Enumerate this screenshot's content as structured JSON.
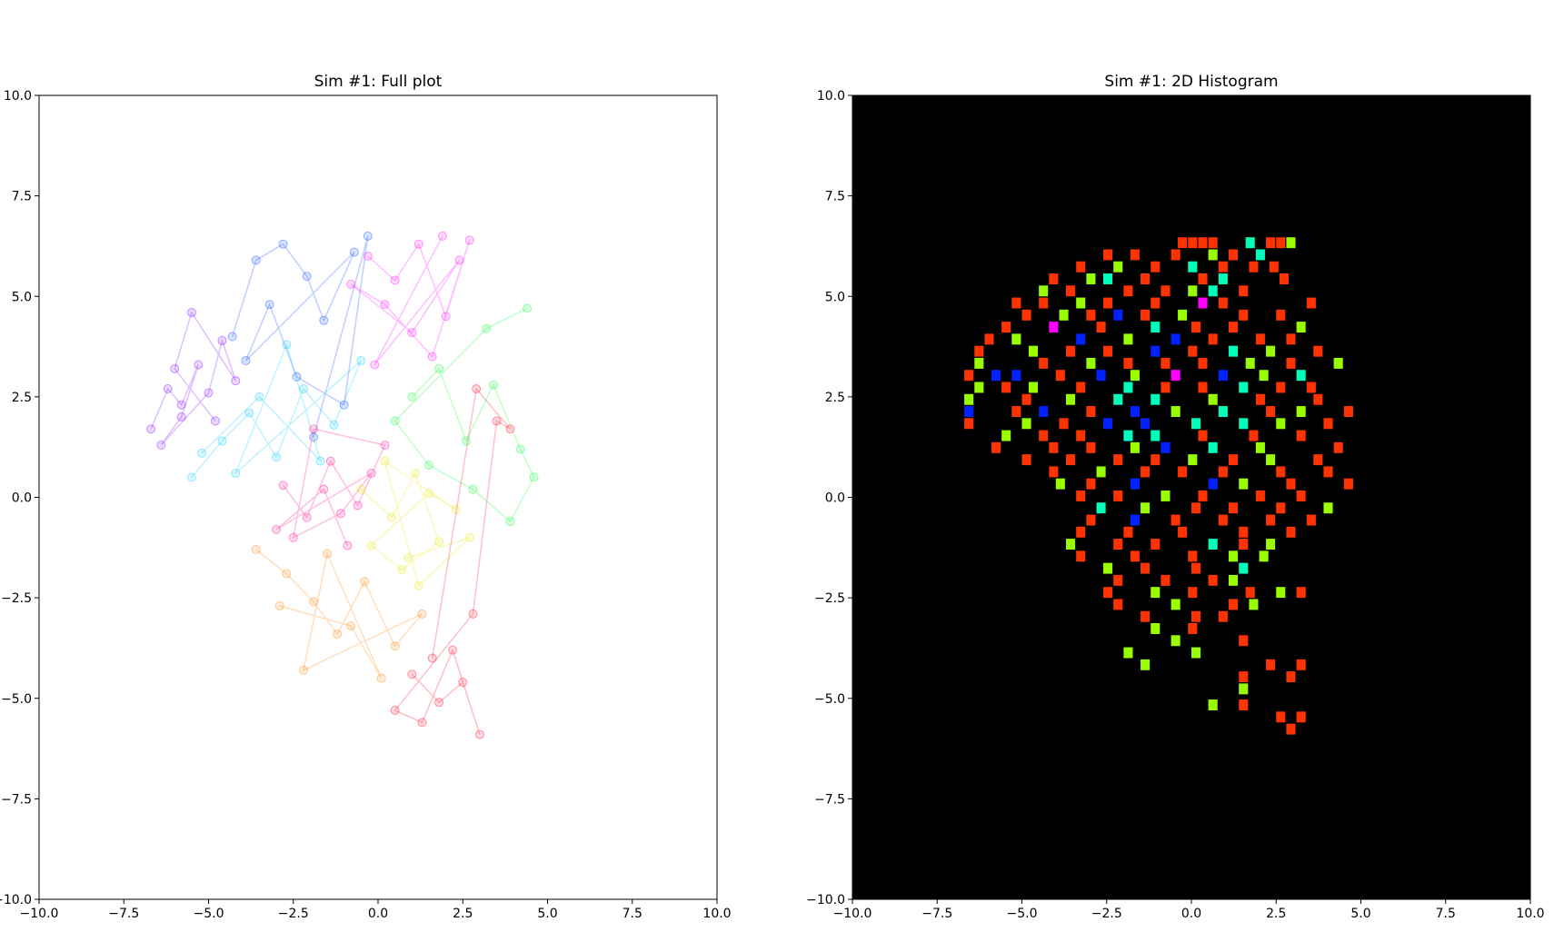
{
  "chart_data": [
    {
      "type": "trajectory",
      "title": "Sim #1: Full plot",
      "xlim": [
        -10,
        10
      ],
      "ylim": [
        -10,
        10
      ],
      "xticks": [
        {
          "value": -10,
          "label": "−10.0"
        },
        {
          "value": -7.5,
          "label": "−7.5"
        },
        {
          "value": -5,
          "label": "−5.0"
        },
        {
          "value": -2.5,
          "label": "−2.5"
        },
        {
          "value": 0,
          "label": "0.0"
        },
        2.5,
        {
          "value": 5,
          "label": "5.0"
        },
        7.5,
        {
          "value": 10,
          "label": "10.0"
        }
      ],
      "yticks": [
        {
          "value": -10,
          "label": "−10.0"
        },
        {
          "value": -7.5,
          "label": "−7.5"
        },
        {
          "value": -5,
          "label": "−5.0"
        },
        {
          "value": -2.5,
          "label": "−2.5"
        },
        {
          "value": 0,
          "label": "0.0"
        },
        2.5,
        {
          "value": 5,
          "label": "5.0"
        },
        7.5,
        {
          "value": 10,
          "label": "10.0"
        }
      ],
      "series": [
        {
          "color": "#8000ff",
          "x": [
            -6.7,
            -6.2,
            -5.8,
            -5.3,
            -5.8,
            -6.4,
            -5.0,
            -4.6,
            -4.2,
            -5.5,
            -6.0,
            -4.8
          ],
          "y": [
            1.7,
            2.7,
            2.3,
            3.3,
            2.0,
            1.3,
            2.6,
            3.9,
            2.9,
            4.6,
            3.2,
            1.9
          ]
        },
        {
          "color": "#0040ff",
          "x": [
            -4.3,
            -3.6,
            -2.8,
            -2.1,
            -1.6,
            -0.7,
            -3.9,
            -3.2,
            -2.4,
            -1.0,
            -0.3,
            -1.9
          ],
          "y": [
            4.0,
            5.9,
            6.3,
            5.5,
            4.4,
            6.1,
            3.4,
            4.8,
            3.0,
            2.3,
            6.5,
            1.5
          ]
        },
        {
          "color": "#00ccff",
          "x": [
            -5.5,
            -4.6,
            -3.8,
            -3.0,
            -2.2,
            -1.3,
            -0.5,
            -4.2,
            -2.7,
            -1.7,
            -3.5,
            -5.2
          ],
          "y": [
            0.5,
            1.4,
            2.1,
            1.0,
            2.7,
            1.8,
            3.4,
            0.6,
            3.8,
            0.9,
            2.5,
            1.1
          ]
        },
        {
          "color": "#ff00ff",
          "x": [
            -0.3,
            0.5,
            1.2,
            2.0,
            2.7,
            1.6,
            0.2,
            -0.8,
            1.0,
            2.4,
            -0.1,
            1.9
          ],
          "y": [
            6.0,
            5.4,
            6.3,
            4.5,
            6.4,
            3.5,
            4.8,
            5.3,
            4.1,
            5.9,
            3.3,
            6.5
          ]
        },
        {
          "color": "#00ff30",
          "x": [
            1.0,
            1.8,
            2.6,
            3.4,
            4.2,
            4.6,
            3.9,
            2.8,
            1.5,
            0.5,
            3.2,
            4.4
          ],
          "y": [
            2.5,
            3.2,
            1.4,
            2.8,
            1.2,
            0.5,
            -0.6,
            0.2,
            0.8,
            1.9,
            4.2,
            4.7
          ]
        },
        {
          "color": "#ff0090",
          "x": [
            -2.8,
            -2.1,
            -1.4,
            -0.6,
            0.2,
            -1.9,
            -2.5,
            -1.1,
            -0.2,
            -3.0,
            -1.6,
            -0.9
          ],
          "y": [
            0.3,
            -0.5,
            0.9,
            -0.2,
            1.3,
            1.7,
            -1.0,
            -0.4,
            0.6,
            -0.8,
            0.2,
            -1.2
          ]
        },
        {
          "color": "#e6e600",
          "x": [
            -0.5,
            0.4,
            1.1,
            1.8,
            0.7,
            -0.2,
            1.5,
            2.3,
            0.2,
            1.2,
            2.7,
            0.9
          ],
          "y": [
            0.2,
            -0.5,
            0.6,
            -1.1,
            -1.8,
            -1.2,
            0.1,
            -0.3,
            0.9,
            -2.2,
            -1.0,
            -1.5
          ]
        },
        {
          "color": "#ff8000",
          "x": [
            -3.6,
            -2.7,
            -1.9,
            -1.2,
            -0.4,
            0.5,
            1.3,
            -2.2,
            -1.5,
            0.1,
            -0.8,
            -2.9
          ],
          "y": [
            -1.3,
            -1.9,
            -2.6,
            -3.4,
            -2.1,
            -3.7,
            -2.9,
            -4.3,
            -1.4,
            -4.5,
            -3.2,
            -2.7
          ]
        },
        {
          "color": "#ff0020",
          "x": [
            1.0,
            1.8,
            2.5,
            3.0,
            2.2,
            1.3,
            0.5,
            2.8,
            3.5,
            3.9,
            2.9,
            1.6
          ],
          "y": [
            -4.4,
            -5.1,
            -4.6,
            -5.9,
            -3.8,
            -5.6,
            -5.3,
            -2.9,
            1.9,
            1.7,
            2.7,
            -4.0
          ]
        }
      ]
    },
    {
      "type": "hist2d",
      "title": "Sim #1: 2D Histogram",
      "xlim": [
        -10,
        10
      ],
      "ylim": [
        -10,
        10
      ],
      "bin_width": 0.27,
      "background": "#000000",
      "count_colors": [
        "#000000",
        "#ff3300",
        "#99ff00",
        "#00ffbb",
        "#0022ff",
        "#ff00ff"
      ],
      "xticks": [
        {
          "value": -10,
          "label": "−10.0"
        },
        {
          "value": -7.5,
          "label": "−7.5"
        },
        {
          "value": -5,
          "label": "−5.0"
        },
        {
          "value": -2.5,
          "label": "−2.5"
        },
        {
          "value": 0,
          "label": "0.0"
        },
        2.5,
        {
          "value": 5,
          "label": "5.0"
        },
        7.5,
        {
          "value": 10,
          "label": "10.0"
        }
      ],
      "yticks": [
        {
          "value": -10,
          "label": "−10.0"
        },
        {
          "value": -7.5,
          "label": "−7.5"
        },
        {
          "value": -5,
          "label": "−5.0"
        },
        {
          "value": -2.5,
          "label": "−2.5"
        },
        {
          "value": 0,
          "label": "0.0"
        },
        2.5,
        {
          "value": 5,
          "label": "5.0"
        },
        7.5,
        {
          "value": 10,
          "label": "10.0"
        }
      ],
      "rows": [
        {
          "y": 6.2,
          "x": [
            -0.4,
            -0.1,
            0.2,
            0.5,
            1.6,
            2.2,
            2.5,
            2.8
          ],
          "values": [
            1,
            1,
            1,
            1,
            3,
            1,
            1,
            2
          ]
        },
        {
          "y": 5.9,
          "x": [
            -2.6,
            -1.8,
            -0.6,
            0.5,
            1.1,
            1.9
          ],
          "values": [
            1,
            1,
            1,
            2,
            1,
            3
          ]
        },
        {
          "y": 5.6,
          "x": [
            -3.4,
            -2.3,
            -1.2,
            -0.1,
            0.8,
            1.7,
            2.3
          ],
          "values": [
            1,
            2,
            1,
            3,
            1,
            1,
            1
          ]
        },
        {
          "y": 5.3,
          "x": [
            -4.2,
            -3.1,
            -2.6,
            -1.5,
            0.2,
            0.8,
            2.6
          ],
          "values": [
            1,
            2,
            3,
            1,
            1,
            3,
            1
          ]
        },
        {
          "y": 5.0,
          "x": [
            -4.5,
            -3.7,
            -2.0,
            -0.9,
            -0.1,
            0.5,
            1.4
          ],
          "values": [
            2,
            1,
            1,
            1,
            2,
            3,
            1
          ]
        },
        {
          "y": 4.7,
          "x": [
            -5.3,
            -4.5,
            -3.4,
            -2.6,
            -1.2,
            0.2,
            0.8,
            3.4
          ],
          "values": [
            1,
            1,
            2,
            1,
            1,
            5,
            1,
            1
          ]
        },
        {
          "y": 4.4,
          "x": [
            -5.0,
            -3.9,
            -3.1,
            -2.3,
            -1.5,
            -0.4,
            1.4,
            2.5
          ],
          "values": [
            1,
            2,
            1,
            4,
            1,
            2,
            1,
            1
          ]
        },
        {
          "y": 4.1,
          "x": [
            -5.6,
            -4.2,
            -2.8,
            -1.2,
            0.0,
            1.1,
            3.1
          ],
          "values": [
            1,
            5,
            1,
            3,
            1,
            1,
            2
          ]
        },
        {
          "y": 3.8,
          "x": [
            -6.1,
            -5.3,
            -3.4,
            -2.0,
            -0.6,
            0.5,
            1.9,
            2.8
          ],
          "values": [
            1,
            2,
            4,
            2,
            4,
            1,
            1,
            1
          ]
        },
        {
          "y": 3.5,
          "x": [
            -6.4,
            -4.8,
            -3.7,
            -2.6,
            -1.2,
            -0.1,
            1.1,
            2.2,
            3.6
          ],
          "values": [
            1,
            2,
            1,
            1,
            4,
            1,
            3,
            2,
            1
          ]
        },
        {
          "y": 3.2,
          "x": [
            -6.4,
            -4.5,
            -3.1,
            -2.0,
            -0.9,
            0.2,
            1.6,
            2.8,
            4.2
          ],
          "values": [
            2,
            1,
            2,
            1,
            1,
            1,
            2,
            1,
            2
          ]
        },
        {
          "y": 2.9,
          "x": [
            -6.7,
            -5.9,
            -5.3,
            -4.0,
            -2.8,
            -1.8,
            -0.6,
            0.8,
            2.0,
            3.1
          ],
          "values": [
            1,
            4,
            4,
            1,
            4,
            2,
            5,
            4,
            2,
            3
          ]
        },
        {
          "y": 2.6,
          "x": [
            -6.4,
            -5.6,
            -4.8,
            -3.4,
            -2.0,
            -0.9,
            0.2,
            1.4,
            2.5,
            3.4
          ],
          "values": [
            2,
            1,
            2,
            1,
            3,
            1,
            1,
            3,
            1,
            1
          ]
        },
        {
          "y": 2.3,
          "x": [
            -6.7,
            -5.0,
            -3.7,
            -2.3,
            -1.2,
            0.5,
            1.9,
            3.6
          ],
          "values": [
            2,
            1,
            2,
            3,
            3,
            2,
            1,
            1
          ]
        },
        {
          "y": 2.0,
          "x": [
            -6.7,
            -5.3,
            -4.5,
            -3.1,
            -1.8,
            -0.6,
            0.8,
            2.2,
            3.1,
            4.5
          ],
          "values": [
            4,
            1,
            4,
            1,
            4,
            2,
            3,
            1,
            2,
            1
          ]
        },
        {
          "y": 1.7,
          "x": [
            -6.7,
            -5.0,
            -3.9,
            -2.6,
            -1.5,
            0.0,
            1.4,
            2.5,
            3.9
          ],
          "values": [
            1,
            2,
            1,
            4,
            4,
            3,
            3,
            2,
            1
          ]
        },
        {
          "y": 1.4,
          "x": [
            -5.6,
            -4.5,
            -3.4,
            -2.0,
            -1.2,
            0.2,
            1.7,
            3.1
          ],
          "values": [
            2,
            1,
            1,
            3,
            3,
            1,
            1,
            1
          ]
        },
        {
          "y": 1.1,
          "x": [
            -5.9,
            -4.2,
            -3.1,
            -1.8,
            -0.9,
            0.5,
            1.9,
            4.2
          ],
          "values": [
            1,
            1,
            1,
            2,
            4,
            3,
            2,
            1
          ]
        },
        {
          "y": 0.8,
          "x": [
            -5.0,
            -3.7,
            -2.3,
            -1.2,
            -0.1,
            1.1,
            2.2,
            3.6
          ],
          "values": [
            1,
            1,
            1,
            1,
            2,
            1,
            2,
            1
          ]
        },
        {
          "y": 0.5,
          "x": [
            -4.2,
            -2.8,
            -1.5,
            -0.4,
            0.8,
            2.5,
            3.9
          ],
          "values": [
            1,
            2,
            1,
            1,
            1,
            1,
            1
          ]
        },
        {
          "y": 0.2,
          "x": [
            -4.0,
            -3.1,
            -1.8,
            0.5,
            1.4,
            2.8,
            4.5
          ],
          "values": [
            2,
            1,
            4,
            4,
            2,
            1,
            1
          ]
        },
        {
          "y": -0.1,
          "x": [
            -3.4,
            -2.3,
            -0.9,
            0.2,
            1.9,
            3.1
          ],
          "values": [
            1,
            1,
            2,
            1,
            1,
            1
          ]
        },
        {
          "y": -0.4,
          "x": [
            -2.8,
            -1.5,
            0.0,
            1.1,
            2.5,
            3.9
          ],
          "values": [
            3,
            2,
            1,
            1,
            1,
            2
          ]
        },
        {
          "y": -0.7,
          "x": [
            -3.1,
            -1.8,
            -0.6,
            0.8,
            2.2,
            3.4
          ],
          "values": [
            1,
            4,
            1,
            1,
            1,
            1
          ]
        },
        {
          "y": -1.0,
          "x": [
            -3.4,
            -2.0,
            -0.4,
            1.4,
            2.8
          ],
          "values": [
            1,
            1,
            1,
            1,
            1
          ]
        },
        {
          "y": -1.3,
          "x": [
            -3.7,
            -2.3,
            -1.2,
            0.5,
            1.4,
            2.2
          ],
          "values": [
            2,
            1,
            1,
            3,
            1,
            2
          ]
        },
        {
          "y": -1.6,
          "x": [
            -3.4,
            -1.8,
            -0.1,
            1.1,
            2.0
          ],
          "values": [
            1,
            1,
            1,
            2,
            2
          ]
        },
        {
          "y": -1.9,
          "x": [
            -2.6,
            -1.5,
            0.0,
            1.4
          ],
          "values": [
            2,
            1,
            1,
            3
          ]
        },
        {
          "y": -2.2,
          "x": [
            -2.3,
            -0.9,
            0.5,
            1.1
          ],
          "values": [
            1,
            1,
            1,
            2
          ]
        },
        {
          "y": -2.5,
          "x": [
            -2.6,
            -1.2,
            -0.1,
            1.6,
            2.5,
            3.1
          ],
          "values": [
            1,
            2,
            1,
            1,
            2,
            1
          ]
        },
        {
          "y": -2.8,
          "x": [
            -2.3,
            -0.6,
            1.1,
            1.7
          ],
          "values": [
            1,
            2,
            1,
            2
          ]
        },
        {
          "y": -3.1,
          "x": [
            -1.5,
            0.0,
            0.8
          ],
          "values": [
            1,
            1,
            1
          ]
        },
        {
          "y": -3.4,
          "x": [
            -1.2,
            -0.1
          ],
          "values": [
            2,
            1
          ]
        },
        {
          "y": -3.7,
          "x": [
            -0.6,
            1.4
          ],
          "values": [
            2,
            1
          ]
        },
        {
          "y": -4.0,
          "x": [
            -2.0,
            0.0
          ],
          "values": [
            2,
            2
          ]
        },
        {
          "y": -4.3,
          "x": [
            -1.5,
            2.2,
            3.1
          ],
          "values": [
            2,
            1,
            1
          ]
        },
        {
          "y": -4.6,
          "x": [
            1.4,
            2.8
          ],
          "values": [
            1,
            1
          ]
        },
        {
          "y": -4.9,
          "x": [
            1.4
          ],
          "values": [
            2
          ]
        },
        {
          "y": -5.3,
          "x": [
            0.5,
            1.4
          ],
          "values": [
            2,
            1
          ]
        },
        {
          "y": -5.6,
          "x": [
            2.5,
            3.1
          ],
          "values": [
            1,
            1
          ]
        },
        {
          "y": -5.9,
          "x": [
            2.8
          ],
          "values": [
            1
          ]
        }
      ]
    }
  ]
}
